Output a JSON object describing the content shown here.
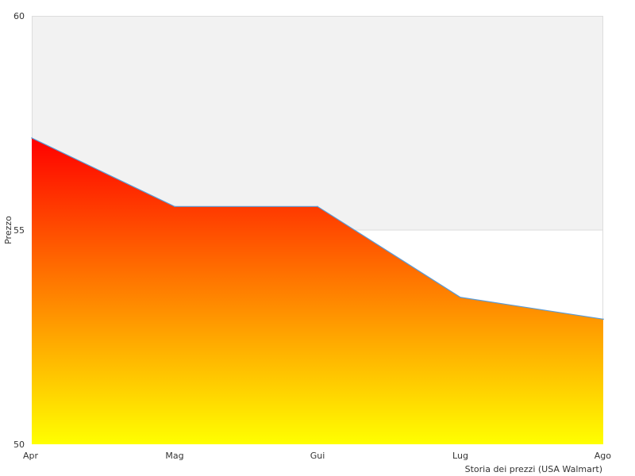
{
  "chart_data": {
    "type": "area",
    "title": "",
    "xlabel": "Storia dei prezzi (USA Walmart)",
    "ylabel": "Prezzo",
    "categories": [
      "Apr",
      "Mag",
      "Gui",
      "Lug",
      "Ago"
    ],
    "series": [
      {
        "values": [
          57.15,
          55.55,
          55.55,
          53.43,
          52.92
        ]
      }
    ],
    "ylim": [
      50,
      60
    ],
    "y_ticks": [
      "50",
      "55",
      "60"
    ],
    "grid": true,
    "legend": "none",
    "colors": {
      "fill_top": "#ff0000",
      "fill_bottom": "#ffff00",
      "line": "#5b9bd5",
      "band": "#f2f2f2",
      "plot_border": "#dddddd"
    }
  }
}
